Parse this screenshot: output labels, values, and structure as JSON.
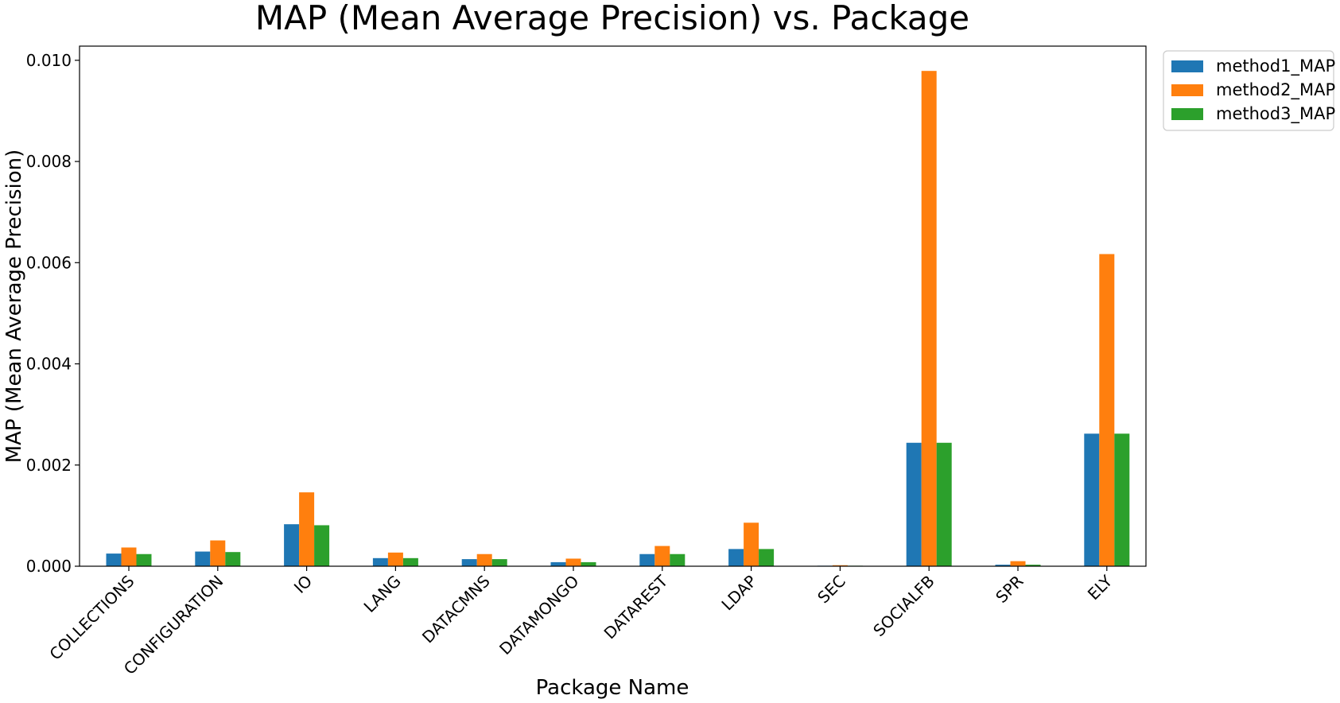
{
  "chart_data": {
    "type": "bar",
    "title": "MAP (Mean Average Precision) vs. Package",
    "xlabel": "Package Name",
    "ylabel": "MAP (Mean Average Precision)",
    "ylim": [
      0,
      0.01028
    ],
    "yticks": [
      "0.000",
      "0.002",
      "0.004",
      "0.006",
      "0.008",
      "0.010"
    ],
    "ytick_values": [
      0,
      0.002,
      0.004,
      0.006,
      0.008,
      0.01
    ],
    "grid": false,
    "legend_position": "top-right-outside",
    "categories": [
      "COLLECTIONS",
      "CONFIGURATION",
      "IO",
      "LANG",
      "DATACMNS",
      "DATAMONGO",
      "DATAREST",
      "LDAP",
      "SEC",
      "SOCIALFB",
      "SPR",
      "ELY"
    ],
    "series": [
      {
        "name": "method1_MAP",
        "color": "#1f77b4",
        "values": [
          0.00025,
          0.00029,
          0.00083,
          0.00016,
          0.00014,
          8e-05,
          0.00024,
          0.00034,
          1e-05,
          0.00244,
          3e-05,
          0.00262
        ]
      },
      {
        "name": "method2_MAP",
        "color": "#ff7f0e",
        "values": [
          0.00037,
          0.00051,
          0.00146,
          0.00027,
          0.00024,
          0.00015,
          0.0004,
          0.00086,
          2e-05,
          0.00979,
          0.0001,
          0.00617
        ]
      },
      {
        "name": "method3_MAP",
        "color": "#2ca02c",
        "values": [
          0.00024,
          0.00028,
          0.00081,
          0.00016,
          0.00014,
          8e-05,
          0.00024,
          0.00034,
          1e-05,
          0.00244,
          3e-05,
          0.00262
        ]
      }
    ]
  }
}
